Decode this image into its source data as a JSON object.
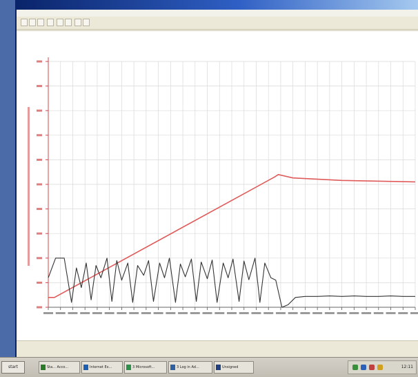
{
  "window": {
    "title": "",
    "menus": []
  },
  "colors": {
    "series_red": "#e05a5a",
    "series_black": "#333333",
    "grid": "#d9d9d9",
    "axis_label_red": "#d04848"
  },
  "chart_data": {
    "type": "line",
    "title": "",
    "xlabel": "",
    "ylabel": "",
    "ylim": [
      0,
      500
    ],
    "y_ticks": [
      0,
      50,
      100,
      150,
      200,
      250,
      300,
      350,
      400,
      450,
      500
    ],
    "x_tick_count": 30,
    "x_range": [
      0,
      30
    ],
    "grid": true,
    "series": [
      {
        "color": "red",
        "x": [
          0,
          0.5,
          18.5,
          18.8,
          20,
          24,
          30
        ],
        "y": [
          20,
          20,
          265,
          270,
          263,
          258,
          255
        ]
      },
      {
        "color": "black",
        "x": [
          0,
          0.6,
          1.3,
          1.9,
          2.3,
          2.7,
          3.1,
          3.5,
          3.9,
          4.3,
          4.8,
          5.2,
          5.6,
          6.0,
          6.5,
          6.9,
          7.3,
          7.8,
          8.2,
          8.6,
          9.1,
          9.5,
          9.9,
          10.4,
          10.8,
          11.2,
          11.7,
          12.1,
          12.5,
          13.0,
          13.4,
          13.8,
          14.3,
          14.7,
          15.1,
          15.6,
          16.0,
          16.4,
          16.9,
          17.3,
          17.7,
          18.2,
          18.6,
          19.1,
          19.6,
          20.2,
          21.0,
          22.0,
          23.0,
          24.0,
          25.0,
          26.0,
          27.0,
          28.0,
          29.0,
          30.0
        ],
        "y": [
          60,
          100,
          100,
          10,
          80,
          40,
          90,
          15,
          85,
          60,
          100,
          12,
          95,
          55,
          90,
          10,
          85,
          65,
          95,
          12,
          90,
          60,
          100,
          10,
          88,
          62,
          98,
          12,
          92,
          58,
          96,
          10,
          90,
          60,
          98,
          12,
          94,
          56,
          100,
          10,
          90,
          60,
          55,
          0,
          5,
          20,
          22,
          22,
          23,
          22,
          23,
          22,
          22,
          23,
          22,
          22
        ]
      }
    ]
  },
  "taskbar": {
    "start_label": "start",
    "tasks": [
      {
        "label": "Sta... Acco..."
      },
      {
        "label": "Internet Ex..."
      },
      {
        "label": "3 Microsoft..."
      },
      {
        "label": "3 Log in Ad..."
      },
      {
        "label": "Unsigned"
      }
    ],
    "clock": "12:11"
  }
}
